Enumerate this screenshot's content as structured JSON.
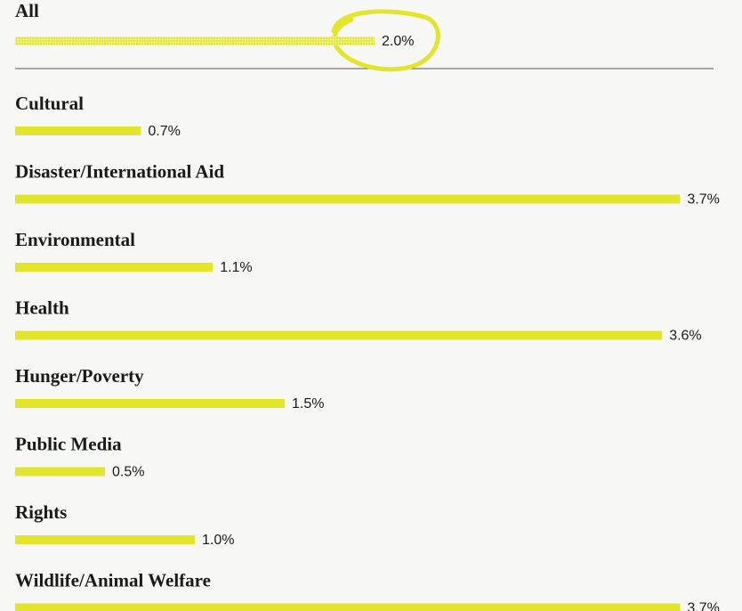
{
  "chart_data": {
    "type": "bar",
    "categories": [
      "All",
      "Cultural",
      "Disaster/International Aid",
      "Environmental",
      "Health",
      "Hunger/Poverty",
      "Public Media",
      "Rights",
      "Wildlife/Animal Welfare"
    ],
    "values": [
      2.0,
      0.7,
      3.7,
      1.1,
      3.6,
      1.5,
      0.5,
      1.0,
      3.7
    ],
    "value_labels": [
      "2.0%",
      "0.7%",
      "3.7%",
      "1.1%",
      "3.6%",
      "1.5%",
      "0.5%",
      "1.0%",
      "3.7%"
    ],
    "color": "#e3e52b"
  }
}
